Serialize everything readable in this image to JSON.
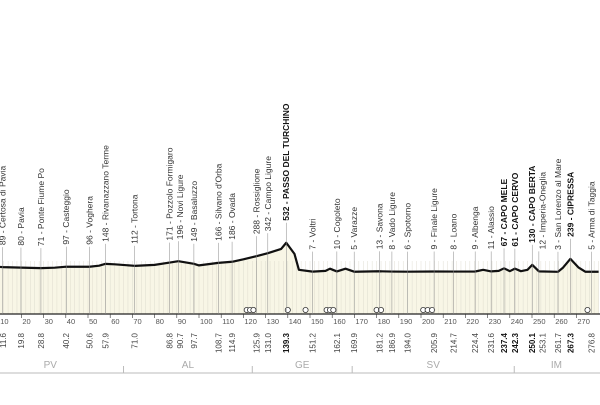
{
  "chart_data": {
    "type": "area",
    "xlim": [
      0,
      280
    ],
    "x_ticks": [
      10,
      20,
      30,
      40,
      50,
      60,
      70,
      80,
      90,
      100,
      110,
      120,
      130,
      140,
      150,
      160,
      170,
      180,
      190,
      200,
      210,
      220,
      230,
      240,
      250,
      260,
      270
    ],
    "profile": [
      [
        0,
        120
      ],
      [
        11.6,
        89
      ],
      [
        19.8,
        80
      ],
      [
        28.8,
        71
      ],
      [
        35,
        78
      ],
      [
        40.2,
        97
      ],
      [
        50.6,
        96
      ],
      [
        55,
        115
      ],
      [
        57.9,
        148
      ],
      [
        62,
        140
      ],
      [
        71,
        112
      ],
      [
        80,
        130
      ],
      [
        86.8,
        171
      ],
      [
        90.7,
        196
      ],
      [
        97.7,
        149
      ],
      [
        100,
        120
      ],
      [
        108.7,
        166
      ],
      [
        114.9,
        186
      ],
      [
        120,
        230
      ],
      [
        125.9,
        288
      ],
      [
        131,
        342
      ],
      [
        137,
        420
      ],
      [
        139.3,
        532
      ],
      [
        143,
        330
      ],
      [
        145,
        40
      ],
      [
        151.2,
        7
      ],
      [
        157,
        20
      ],
      [
        159,
        60
      ],
      [
        162.1,
        10
      ],
      [
        166,
        60
      ],
      [
        169.9,
        5
      ],
      [
        181.2,
        13
      ],
      [
        186.9,
        8
      ],
      [
        194,
        6
      ],
      [
        205.9,
        9
      ],
      [
        214.7,
        8
      ],
      [
        224.4,
        9
      ],
      [
        228,
        40
      ],
      [
        231.6,
        11
      ],
      [
        235,
        20
      ],
      [
        237.4,
        67
      ],
      [
        240,
        15
      ],
      [
        242.3,
        61
      ],
      [
        245,
        15
      ],
      [
        248,
        40
      ],
      [
        250.1,
        130
      ],
      [
        253.1,
        12
      ],
      [
        261.7,
        3
      ],
      [
        264,
        80
      ],
      [
        267.3,
        239
      ],
      [
        271,
        80
      ],
      [
        274,
        5
      ],
      [
        276.8,
        5
      ],
      [
        280,
        5
      ]
    ],
    "waypoints": [
      {
        "km": "11.6",
        "elev": 89,
        "label": "89 - Certosa di Pavia",
        "bold": false
      },
      {
        "km": "19.8",
        "elev": 80,
        "label": "80 - Pavia",
        "bold": false
      },
      {
        "km": "28.8",
        "elev": 71,
        "label": "71 - Ponte Fiume Po",
        "bold": false
      },
      {
        "km": "40.2",
        "elev": 97,
        "label": "97 - Casteggio",
        "bold": false
      },
      {
        "km": "50.6",
        "elev": 96,
        "label": "96 - Voghera",
        "bold": false
      },
      {
        "km": "57.9",
        "elev": 148,
        "label": "148 - Rivanazzano Terme",
        "bold": false
      },
      {
        "km": "71.0",
        "elev": 112,
        "label": "112 - Tortona",
        "bold": false
      },
      {
        "km": "86.8",
        "elev": 171,
        "label": "171 - Pozzolo Formigaro",
        "bold": false
      },
      {
        "km": "90.7",
        "elev": 196,
        "label": "196 - Novi Ligure",
        "bold": false
      },
      {
        "km": "97.7",
        "elev": 149,
        "label": "149 - Basaluzzo",
        "bold": false
      },
      {
        "km": "108.7",
        "elev": 166,
        "label": "166 - Silvano d'Orba",
        "bold": false
      },
      {
        "km": "114.9",
        "elev": 186,
        "label": "186 - Ovada",
        "bold": false
      },
      {
        "km": "125.9",
        "elev": 288,
        "label": "288 - Rossiglione",
        "bold": false
      },
      {
        "km": "131.0",
        "elev": 342,
        "label": "342 - Campo Ligure",
        "bold": false
      },
      {
        "km": "139.3",
        "elev": 532,
        "label": "532 - PASSO DEL TURCHINO",
        "bold": true
      },
      {
        "km": "151.2",
        "elev": 7,
        "label": "7 - Voltri",
        "bold": false
      },
      {
        "km": "162.1",
        "elev": 10,
        "label": "10 - Cogoleto",
        "bold": false
      },
      {
        "km": "169.9",
        "elev": 5,
        "label": "5 - Varazze",
        "bold": false
      },
      {
        "km": "181.2",
        "elev": 13,
        "label": "13 - Savona",
        "bold": false
      },
      {
        "km": "186.9",
        "elev": 8,
        "label": "8 - Vado Ligure",
        "bold": false
      },
      {
        "km": "194.0",
        "elev": 6,
        "label": "6 - Spotorno",
        "bold": false
      },
      {
        "km": "205.9",
        "elev": 9,
        "label": "9 - Finale Ligure",
        "bold": false
      },
      {
        "km": "214.7",
        "elev": 8,
        "label": "8 - Loano",
        "bold": false
      },
      {
        "km": "224.4",
        "elev": 9,
        "label": "9 - Albenga",
        "bold": false
      },
      {
        "km": "231.6",
        "elev": 11,
        "label": "11 - Alassio",
        "bold": false
      },
      {
        "km": "237.4",
        "elev": 67,
        "label": "67 - CAPO MELE",
        "bold": true
      },
      {
        "km": "242.3",
        "elev": 61,
        "label": "61 - CAPO CERVO",
        "bold": true
      },
      {
        "km": "250.1",
        "elev": 130,
        "label": "130 - CAPO BERTA",
        "bold": true
      },
      {
        "km": "253.1",
        "elev": 12,
        "label": "12 - Imperia-Oneglia",
        "bold": false
      },
      {
        "km": "261.7",
        "elev": 3,
        "label": "3 - San Lorenzo al Mare",
        "bold": false
      },
      {
        "km": "267.3",
        "elev": 239,
        "label": "239 - CIPRESSA",
        "bold": true
      },
      {
        "km": "276.8",
        "elev": 5,
        "label": "5 - Arma di Taggia",
        "bold": false
      }
    ],
    "provinces": [
      {
        "code": "PV",
        "from": 0,
        "to": 66
      },
      {
        "code": "AL",
        "from": 66,
        "to": 124
      },
      {
        "code": "GE",
        "from": 124,
        "to": 169
      },
      {
        "code": "SV",
        "from": 169,
        "to": 242
      },
      {
        "code": "IM",
        "from": 242,
        "to": 280
      }
    ],
    "colors": {
      "fill": "#f8f6e6",
      "line": "#111111",
      "grid": "#d8d6c8"
    }
  }
}
